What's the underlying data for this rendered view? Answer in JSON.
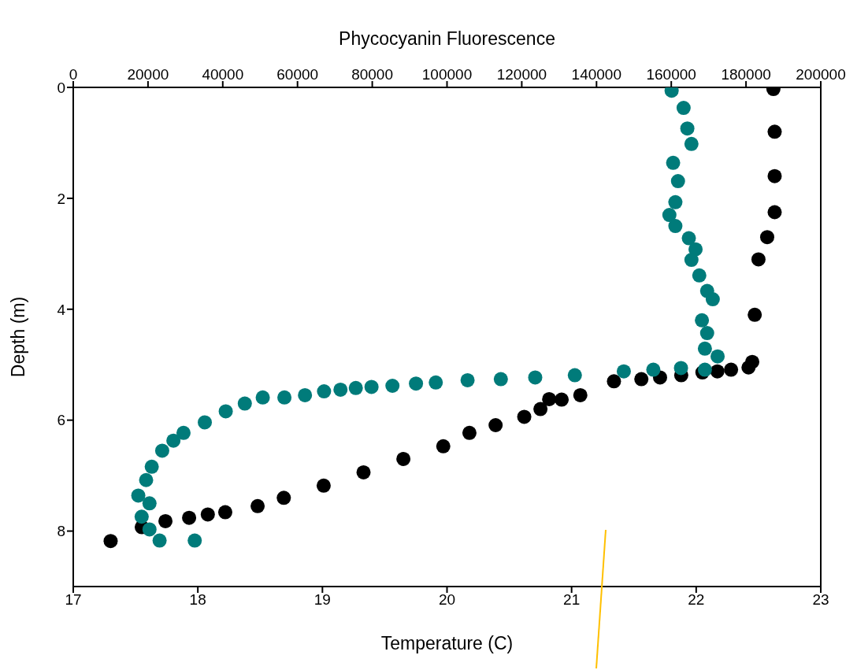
{
  "chart_data": {
    "type": "scatter",
    "xlabel": "Temperature (C)",
    "x2label": "Phycocyanin Fluorescence",
    "ylabel": "Depth (m)",
    "xlim": [
      17,
      23
    ],
    "xticks": [
      17,
      18,
      19,
      20,
      21,
      22,
      23
    ],
    "x2lim": [
      0,
      200000
    ],
    "x2ticks": [
      0,
      20000,
      40000,
      60000,
      80000,
      100000,
      120000,
      140000,
      160000,
      180000,
      200000
    ],
    "ylim": [
      9,
      0
    ],
    "yticks": [
      0,
      2,
      4,
      6,
      8
    ],
    "marker": "circle",
    "grid": false,
    "legend": false,
    "series": [
      {
        "color": "#000000",
        "x": [
          22.62,
          22.63,
          22.63,
          22.63,
          22.57,
          22.5,
          22.47,
          22.45,
          22.42,
          22.28,
          22.17,
          22.05,
          21.88,
          21.71,
          21.56,
          21.34,
          21.07,
          20.92,
          20.82,
          20.75,
          20.62,
          20.39,
          20.18,
          19.97,
          19.65,
          19.33,
          19.01,
          18.69,
          18.48,
          18.22,
          18.08,
          17.93,
          17.74,
          17.55,
          17.3
        ],
        "values": [
          0.03,
          0.8,
          1.6,
          2.25,
          2.7,
          3.1,
          4.1,
          4.95,
          5.05,
          5.09,
          5.12,
          5.14,
          5.19,
          5.23,
          5.26,
          5.3,
          5.55,
          5.63,
          5.62,
          5.8,
          5.94,
          6.09,
          6.23,
          6.47,
          6.7,
          6.94,
          7.18,
          7.4,
          7.55,
          7.66,
          7.7,
          7.76,
          7.82,
          7.93,
          8.18
        ]
      },
      {
        "color": "#007b7a",
        "axis": "x2",
        "x": [
          160100,
          163300,
          164300,
          165400,
          160500,
          161800,
          161100,
          159500,
          161100,
          164700,
          166500,
          165400,
          167500,
          169600,
          171100,
          168200,
          169600,
          169000,
          172400,
          169000,
          162600,
          155200,
          147300,
          134200,
          123600,
          114400,
          105500,
          97000,
          91700,
          85400,
          79800,
          75600,
          71500,
          67100,
          62000,
          56500,
          50700,
          45900,
          40800,
          35200,
          29500,
          26800,
          23800,
          21000,
          19500,
          17400,
          20400,
          18300,
          20400,
          23100,
          32500
        ],
        "values": [
          0.06,
          0.37,
          0.74,
          1.02,
          1.36,
          1.69,
          2.07,
          2.3,
          2.5,
          2.72,
          2.92,
          3.11,
          3.39,
          3.67,
          3.82,
          4.2,
          4.43,
          4.71,
          4.85,
          5.09,
          5.06,
          5.09,
          5.12,
          5.19,
          5.23,
          5.26,
          5.28,
          5.32,
          5.34,
          5.38,
          5.4,
          5.42,
          5.45,
          5.48,
          5.55,
          5.59,
          5.59,
          5.7,
          5.84,
          6.04,
          6.23,
          6.37,
          6.55,
          6.84,
          7.08,
          7.36,
          7.5,
          7.74,
          7.97,
          8.17,
          8.17
        ]
      }
    ]
  }
}
